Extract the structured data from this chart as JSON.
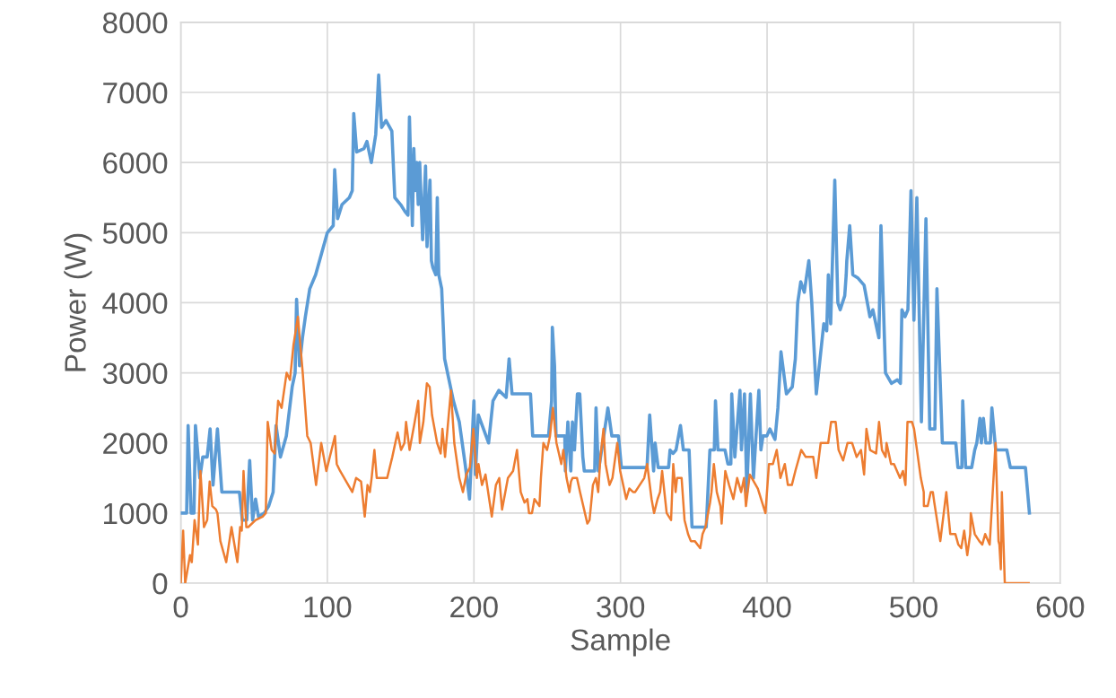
{
  "chart_data": {
    "type": "line",
    "xlabel": "Sample",
    "ylabel": "Power (W)",
    "xlim": [
      0,
      600
    ],
    "xticks": [
      0,
      100,
      200,
      300,
      400,
      500,
      600
    ],
    "ylim": [
      0,
      8000
    ],
    "yticks": [
      0,
      1000,
      2000,
      3000,
      4000,
      5000,
      6000,
      7000,
      8000
    ],
    "grid": true,
    "marker": "none",
    "line_style": "solid",
    "series": [
      {
        "color": "#5b9bd5",
        "x": [
          0,
          4,
          5,
          7,
          9,
          10,
          13,
          15,
          18,
          20,
          22,
          25,
          28,
          35,
          40,
          42,
          45,
          47,
          49,
          51,
          53,
          57,
          60,
          63,
          65,
          68,
          72,
          76,
          78,
          79,
          81,
          83,
          85,
          88,
          92,
          96,
          100,
          104,
          105,
          107,
          110,
          115,
          117,
          118,
          120,
          125,
          127,
          130,
          133,
          135,
          137,
          140,
          144,
          146,
          150,
          153,
          155,
          156,
          158,
          159,
          160,
          161,
          162,
          163,
          165,
          167,
          168,
          170,
          171,
          172,
          174,
          175,
          176,
          178,
          180,
          183,
          186,
          190,
          194,
          197,
          200,
          201,
          203,
          210,
          213,
          217,
          222,
          224,
          226,
          238.6,
          240.1,
          250.9,
          253,
          253.5,
          255,
          256,
          262,
          262.4,
          264.1,
          266.1,
          267.2,
          268.6,
          270.6,
          272.2,
          274.3,
          275.3,
          282.4,
          283.3,
          284.9,
          287.9,
          291.4,
          294.1,
          298.6,
          300.6,
          318.1,
          319.9,
          322.6,
          323.6,
          325.7,
          332.8,
          333.8,
          335.8,
          337.9,
          340.9,
          342.9,
          346.8,
          348.8,
          358.5,
          361,
          364,
          364.8,
          366.5,
          371.3,
          373.3,
          375.3,
          375.9,
          378,
          381.5,
          382.5,
          384.6,
          386.2,
          388.6,
          390.7,
          394.4,
          395.8,
          397.2,
          399.9,
          401.9,
          405.4,
          407.4,
          409.5,
          413.2,
          417.2,
          419.3,
          420.9,
          423,
          425.4,
          428.5,
          430.5,
          433.6,
          438.7,
          440.7,
          441.8,
          443.4,
          446.2,
          448.3,
          449.9,
          453,
          454,
          454.4,
          456.4,
          458.5,
          462.1,
          466.2,
          470.2,
          472.2,
          476.3,
          477.7,
          480.8,
          484.9,
          488.9,
          491,
          492,
          494.1,
          496.1,
          498.2,
          500.2,
          502.2,
          505.3,
          508.4,
          511,
          514.5,
          515.9,
          519.6,
          528.8,
          530.2,
          532.9,
          533.5,
          535.5,
          539.6,
          541.7,
          543.1,
          545.2,
          546.2,
          547.6,
          549.3,
          552.3,
          553.4,
          556,
          563.6,
          566,
          576.3,
          579
        ],
        "values": [
          1000,
          1000,
          2250,
          1000,
          1000,
          2250,
          1500,
          1800,
          1800,
          2200,
          1400,
          2200,
          1300,
          1300,
          1300,
          900,
          900,
          1750,
          900,
          1200,
          950,
          1000,
          1100,
          1300,
          2250,
          1800,
          2100,
          2800,
          3000,
          4050,
          3100,
          3500,
          3800,
          4200,
          4400,
          4700,
          5000,
          5100,
          5900,
          5200,
          5400,
          5500,
          5600,
          6700,
          6150,
          6200,
          6300,
          6000,
          6400,
          7250,
          6500,
          6600,
          6450,
          5500,
          5400,
          5300,
          5250,
          6650,
          5100,
          6200,
          5600,
          6000,
          5400,
          6000,
          4900,
          5950,
          4800,
          5750,
          4600,
          4500,
          4400,
          5500,
          4400,
          4200,
          3200,
          2900,
          2600,
          2300,
          1700,
          1200,
          2600,
          1550,
          2400,
          2000,
          2600,
          2750,
          2650,
          3200,
          2700,
          2700,
          2100,
          2100,
          2600,
          3650,
          3100,
          2100,
          2100,
          1600,
          2300,
          1600,
          2300,
          1900,
          2700,
          2700,
          1800,
          1600,
          1600,
          2500,
          1600,
          2000,
          2500,
          2100,
          2100,
          1650,
          1650,
          2400,
          1600,
          2000,
          1650,
          1650,
          1900,
          1850,
          1900,
          2250,
          1900,
          1900,
          800,
          800,
          1900,
          1900,
          2600,
          1900,
          1900,
          1700,
          1700,
          2700,
          1800,
          2750,
          1900,
          2700,
          1300,
          2700,
          1500,
          2750,
          1900,
          2100,
          2100,
          2200,
          2050,
          2500,
          3300,
          2700,
          2800,
          3200,
          4000,
          4300,
          4150,
          4600,
          4000,
          2700,
          3700,
          3600,
          4400,
          3700,
          5750,
          4000,
          3900,
          4100,
          4400,
          4600,
          5100,
          4400,
          4350,
          4250,
          3800,
          3900,
          3500,
          5100,
          3000,
          2850,
          2900,
          2850,
          3900,
          3800,
          3900,
          5600,
          3750,
          5500,
          2300,
          5200,
          2200,
          2200,
          4200,
          2000,
          2000,
          1650,
          1650,
          2600,
          1650,
          1650,
          1900,
          2000,
          2350,
          2000,
          2350,
          2000,
          2000,
          2500,
          1900,
          1900,
          1650,
          1650,
          1000
        ]
      },
      {
        "color": "#ed7d31",
        "x": [
          0,
          1.6,
          3,
          6.3,
          7.5,
          9.4,
          11.7,
          13.4,
          15.8,
          18,
          19.7,
          21.5,
          24,
          25,
          27,
          31,
          34.6,
          38.6,
          40.5,
          41.6,
          42.8,
          44.7,
          46,
          51.1,
          55.8,
          58,
          59.3,
          62,
          64,
          66.4,
          68.8,
          72.2,
          74.5,
          76.9,
          79.9,
          83.2,
          86.3,
          88.6,
          92.3,
          95.8,
          99.3,
          105.2,
          106.4,
          108.7,
          117,
          119.6,
          123,
          125.5,
          127.4,
          129,
          130.2,
          132.1,
          133.7,
          140.8,
          144.3,
          147.9,
          150.3,
          152.6,
          153.7,
          156.1,
          159.6,
          162,
          163.1,
          165.5,
          167.9,
          169.8,
          171.4,
          174.9,
          177.3,
          178.5,
          180.3,
          184.3,
          186.6,
          190,
          192.5,
          194.8,
          197.2,
          199.6,
          202,
          203.1,
          205.5,
          207.9,
          212.2,
          215,
          217.3,
          219.2,
          223.2,
          226.7,
          229.4,
          231.9,
          234.5,
          236.5,
          237.6,
          239.6,
          241.3,
          244.7,
          245.7,
          247.4,
          249.9,
          251.9,
          253.9,
          256.3,
          258,
          259.6,
          261,
          263.2,
          265.2,
          266.2,
          267.3,
          270.3,
          272.4,
          277.4,
          278.9,
          281.2,
          283.2,
          284.8,
          286.3,
          288.4,
          289.8,
          292.5,
          294.5,
          297.8,
          299.8,
          303.9,
          306,
          308.6,
          310,
          313.1,
          316.2,
          318.2,
          321.2,
          322.9,
          325.3,
          327,
          328.4,
          331.5,
          334.5,
          336,
          337.6,
          338.6,
          341.7,
          343.7,
          346.1,
          348,
          350.7,
          354.4,
          356,
          358,
          361.1,
          362.1,
          363.7,
          365.7,
          368.2,
          369,
          371.5,
          374.1,
          377,
          379.6,
          382.3,
          384.3,
          385.6,
          388.2,
          393.7,
          398.9,
          401.3,
          404,
          406.6,
          409.1,
          412.1,
          414.2,
          416.9,
          419.3,
          423.3,
          426.4,
          431.5,
          433.6,
          436.6,
          441.7,
          443.7,
          446.8,
          448.8,
          451.9,
          454.9,
          458,
          461.1,
          464.1,
          466.2,
          467.8,
          470.3,
          474.4,
          476.4,
          478.4,
          480.9,
          481.5,
          484.6,
          486.6,
          490.7,
          492.7,
          494.4,
          495.8,
          498.9,
          500.3,
          504.9,
          506.9,
          507,
          509.6,
          511.7,
          513.1,
          514.1,
          518.2,
          522.3,
          525,
          528.5,
          530.5,
          532.5,
          534.5,
          536.6,
          538.6,
          539,
          541.7,
          544.8,
          546.8,
          548.8,
          551.9,
          555.9,
          557.9,
          558.5,
          559.5,
          560.2,
          562.2,
          578.5
        ],
        "values": [
          0,
          750,
          0,
          400,
          300,
          900,
          550,
          1600,
          800,
          900,
          1450,
          1100,
          1050,
          1000,
          600,
          300,
          800,
          300,
          800,
          750,
          1600,
          800,
          800,
          900,
          950,
          1000,
          2300,
          1900,
          1850,
          2600,
          2500,
          3000,
          2900,
          3400,
          3800,
          3000,
          2100,
          2000,
          1400,
          2000,
          1600,
          2100,
          1700,
          1600,
          1300,
          1500,
          1450,
          950,
          1400,
          1300,
          1500,
          1900,
          1500,
          1500,
          1800,
          2150,
          1900,
          2000,
          2300,
          1900,
          2300,
          2600,
          2000,
          2300,
          2850,
          2800,
          2400,
          2000,
          1850,
          2200,
          1800,
          2750,
          2000,
          1500,
          1300,
          1550,
          1650,
          2200,
          1500,
          1700,
          1400,
          1550,
          950,
          1400,
          1500,
          1050,
          1500,
          1600,
          1900,
          1300,
          1150,
          1200,
          1000,
          1000,
          1200,
          1100,
          1500,
          2000,
          1900,
          2100,
          2500,
          2000,
          1850,
          1700,
          1900,
          1500,
          1300,
          1450,
          1500,
          1500,
          1300,
          850,
          900,
          1400,
          1500,
          1300,
          1800,
          2200,
          1700,
          1400,
          1500,
          2000,
          1600,
          1200,
          1350,
          1300,
          1300,
          1400,
          1500,
          1700,
          1200,
          1000,
          1200,
          1300,
          1600,
          1000,
          900,
          1700,
          1300,
          1500,
          1500,
          900,
          700,
          600,
          600,
          500,
          700,
          800,
          1150,
          1300,
          1700,
          1300,
          1100,
          850,
          1600,
          1400,
          1200,
          1500,
          1300,
          1500,
          1100,
          1550,
          1350,
          1000,
          1700,
          1700,
          1900,
          1500,
          1700,
          1400,
          1400,
          1600,
          1900,
          1800,
          1800,
          1500,
          2000,
          2000,
          2300,
          2300,
          1900,
          1750,
          2000,
          2000,
          1800,
          1900,
          1550,
          2200,
          1900,
          1850,
          2300,
          1900,
          1800,
          2000,
          1700,
          1700,
          1500,
          1600,
          1400,
          2300,
          2300,
          2200,
          1500,
          1300,
          1100,
          1100,
          1300,
          1300,
          1150,
          600,
          1300,
          700,
          700,
          550,
          500,
          750,
          400,
          700,
          1000,
          700,
          600,
          550,
          700,
          550,
          2000,
          600,
          550,
          200,
          1300,
          0,
          0
        ]
      }
    ]
  }
}
